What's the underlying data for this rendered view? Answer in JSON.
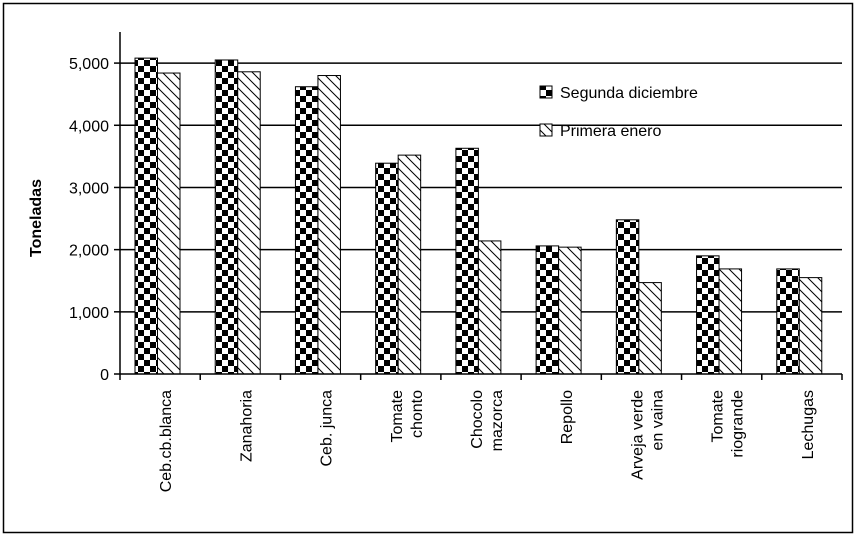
{
  "chart_data": {
    "type": "bar",
    "title": "",
    "xlabel": "",
    "ylabel": "Toneladas",
    "ylim": [
      0,
      5000
    ],
    "yticks": [
      0,
      1000,
      2000,
      3000,
      4000,
      5000
    ],
    "ytick_labels": [
      "0",
      "1,000",
      "2,000",
      "3,000",
      "4,000",
      "5,000"
    ],
    "grid": true,
    "legend_position": "top-right",
    "categories": [
      [
        "Ceb.cb.blanca"
      ],
      [
        "Zanahoria"
      ],
      [
        "Ceb. junca"
      ],
      [
        "Tomate",
        "chonto"
      ],
      [
        "Chocolo",
        "mazorca"
      ],
      [
        "Repollo"
      ],
      [
        "Arveja verde",
        "en vaina"
      ],
      [
        "Tomate",
        "riogrande"
      ],
      [
        "Lechugas"
      ]
    ],
    "series": [
      {
        "name": "Segunda diciembre",
        "pattern": "checker",
        "values": [
          5080,
          5050,
          4620,
          3390,
          3630,
          2060,
          2480,
          1900,
          1690
        ]
      },
      {
        "name": "Primera enero",
        "pattern": "diagonal-hatch",
        "values": [
          4840,
          4860,
          4800,
          3520,
          2140,
          2040,
          1470,
          1690,
          1550
        ]
      }
    ],
    "colors": {
      "foreground": "#000000",
      "background": "#ffffff"
    }
  }
}
